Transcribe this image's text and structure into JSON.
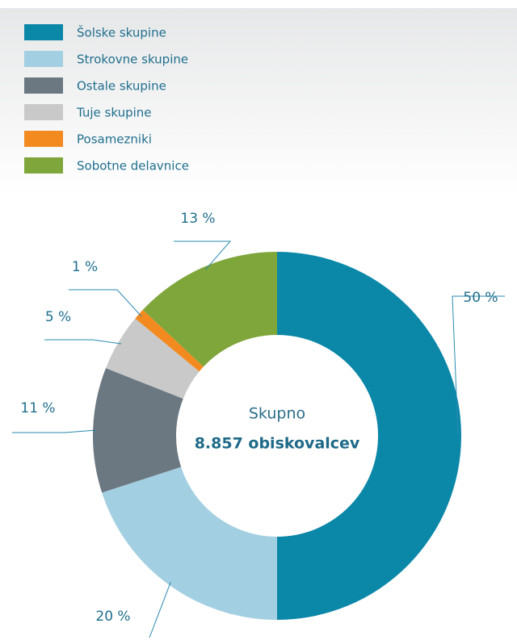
{
  "chart_data": {
    "type": "donut",
    "categories": [
      "Šolske skupine",
      "Strokovne skupine",
      "Ostale skupine",
      "Tuje skupine",
      "Posamezniki",
      "Sobotne delavnice"
    ],
    "values": [
      50,
      20,
      11,
      5,
      1,
      13
    ],
    "value_labels": [
      "50 %",
      "20 %",
      "11 %",
      "5 %",
      "1 %",
      "13 %"
    ],
    "colors": [
      "#0b87a8",
      "#a3cfe2",
      "#6b7882",
      "#c9c9c9",
      "#f28a1f",
      "#7fa63b"
    ],
    "center_title": "Skupno",
    "center_value": "8.857 obiskovalcev"
  }
}
